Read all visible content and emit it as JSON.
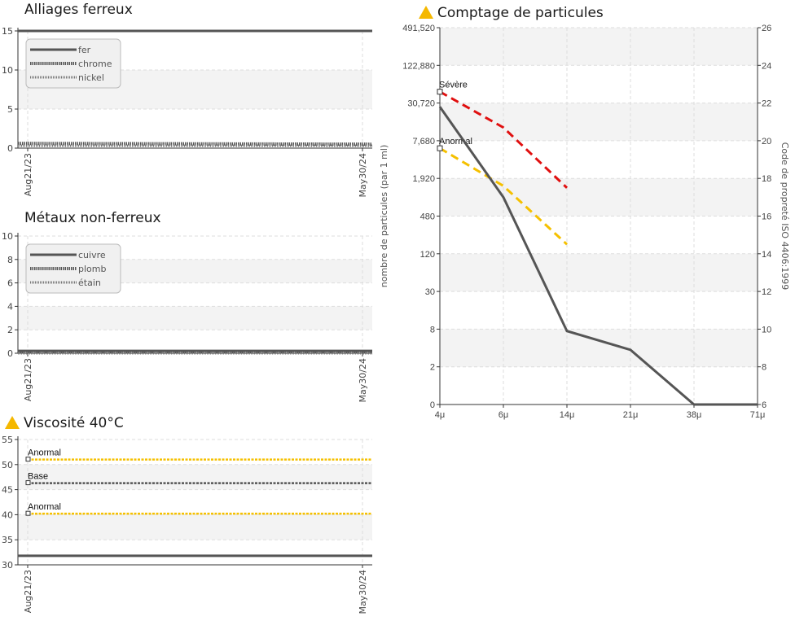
{
  "charts": {
    "ferrous": {
      "title": "Alliages ferreux",
      "yticks": [
        0,
        5,
        10,
        15
      ],
      "xticks": [
        "Aug21/23",
        "May30/24"
      ],
      "legend": [
        "fer",
        "chrome",
        "nickel"
      ]
    },
    "nonferrous": {
      "title": "Métaux non-ferreux",
      "yticks": [
        0,
        2,
        4,
        6,
        8,
        10
      ],
      "xticks": [
        "Aug21/23",
        "May30/24"
      ],
      "legend": [
        "cuivre",
        "plomb",
        "étain"
      ]
    },
    "viscosity": {
      "title": "Viscosité 40°C",
      "yticks": [
        30,
        35,
        40,
        45,
        50,
        55
      ],
      "xticks": [
        "Aug21/23",
        "May30/24"
      ],
      "levels": [
        "Anormal",
        "Base",
        "Anormal"
      ]
    },
    "particles": {
      "title": "Comptage de particules",
      "ylabel": "nombre de particules (par 1 ml)",
      "y2label": "Code de propreté ISO 4406:1999",
      "yticks": [
        "0",
        "2",
        "8",
        "30",
        "120",
        "480",
        "1,920",
        "7,680",
        "30,720",
        "122,880",
        "491,520"
      ],
      "y2ticks": [
        "6",
        "8",
        "10",
        "12",
        "14",
        "16",
        "18",
        "20",
        "22",
        "24",
        "26"
      ],
      "xticks": [
        "4μ",
        "6μ",
        "14μ",
        "21μ",
        "38μ",
        "71μ"
      ],
      "levels": [
        "Sévère",
        "Anormal"
      ]
    }
  },
  "chart_data": [
    {
      "type": "line",
      "title": "Alliages ferreux",
      "x": [
        "Aug21/23",
        "May30/24"
      ],
      "ylim": [
        0,
        15
      ],
      "series": [
        {
          "name": "fer",
          "values": [
            15,
            15
          ]
        },
        {
          "name": "chrome",
          "values": [
            0.6,
            0.5
          ]
        },
        {
          "name": "nickel",
          "values": [
            0.3,
            0.3
          ]
        }
      ],
      "legend": "top-left",
      "colors": {
        "line": "#555555"
      }
    },
    {
      "type": "line",
      "title": "Métaux non-ferreux",
      "x": [
        "Aug21/23",
        "May30/24"
      ],
      "ylim": [
        0,
        10
      ],
      "series": [
        {
          "name": "cuivre",
          "values": [
            0.2,
            0.2
          ]
        },
        {
          "name": "plomb",
          "values": [
            0.1,
            0.1
          ]
        },
        {
          "name": "étain",
          "values": [
            0.0,
            0.0
          ]
        }
      ],
      "legend": "top-left"
    },
    {
      "type": "line",
      "title": "Viscosité 40°C",
      "x": [
        "Aug21/23",
        "May30/24"
      ],
      "ylim": [
        30,
        55
      ],
      "series": [
        {
          "values": [
            31.8,
            31.8
          ]
        }
      ],
      "levels": [
        {
          "label": "Anormal",
          "value": 51,
          "color": "#f5c000"
        },
        {
          "label": "Base",
          "value": 46.3,
          "color": "#555555"
        },
        {
          "label": "Anormal",
          "value": 40.2,
          "color": "#f5c000"
        }
      ]
    },
    {
      "type": "line",
      "title": "Comptage de particules",
      "x": [
        "4μ",
        "6μ",
        "14μ",
        "21μ",
        "38μ",
        "71μ"
      ],
      "ylabel": "nombre de particules (par 1 ml)",
      "y2label": "Code de propreté ISO 4406:1999",
      "yscale": "log",
      "y2lim": [
        6,
        26
      ],
      "series": [
        {
          "values_iso_code": [
            21.8,
            17.0,
            9.9,
            8.9,
            6,
            6
          ],
          "color": "#555555"
        }
      ],
      "limits": [
        {
          "label": "Sévère",
          "values_iso_code": [
            22.6,
            20.7,
            17.5
          ],
          "color": "#e01010"
        },
        {
          "label": "Anormal",
          "values_iso_code": [
            19.6,
            17.6,
            14.5
          ],
          "color": "#f5c000"
        }
      ]
    }
  ]
}
